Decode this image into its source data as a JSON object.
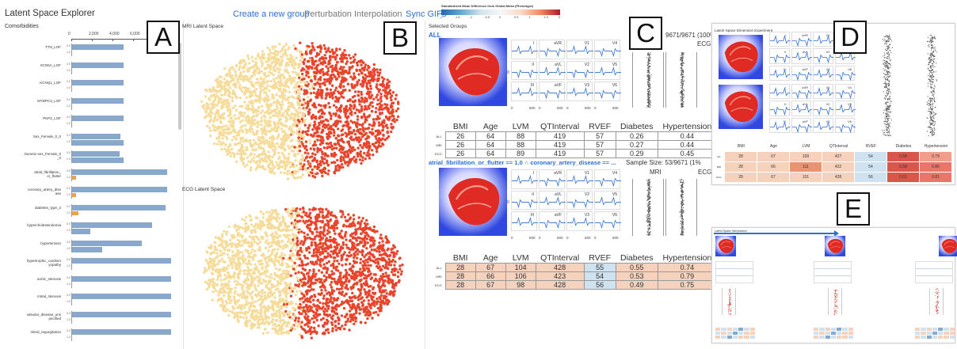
{
  "app": {
    "title": "Latent Space Explorer"
  },
  "nav": {
    "create_group": "Create a new group",
    "perturbation": "Perturbation",
    "interpolation": "Interpolation",
    "sync_gifs": "Sync GIFs"
  },
  "legend": {
    "title": "Standardized Mean Difference from Global Mean (Phenotype)",
    "ticks": [
      "-2",
      "-1.5",
      "-1",
      "-0.5",
      "0",
      "0.5",
      "1",
      "1.5",
      "2"
    ]
  },
  "panel_letters": {
    "a": "A",
    "b": "B",
    "c": "C",
    "d": "D",
    "e": "E"
  },
  "comorbidities": {
    "title": "Comorbidities",
    "axis_ticks": [
      "0",
      "2,000",
      "4,000",
      "6,000"
    ],
    "row_labels": [
      "0.0",
      "1.0"
    ],
    "items": [
      {
        "label": "TTN_LOF",
        "v0": 5000,
        "v1": 0
      },
      {
        "label": "SCN5A_LOF",
        "v0": 5000,
        "v1": 0
      },
      {
        "label": "KCNQ1_LOF",
        "v0": 5000,
        "v1": 0
      },
      {
        "label": "MYBPC3_LOF",
        "v0": 5000,
        "v1": 0
      },
      {
        "label": "PKP2_LOF",
        "v0": 5000,
        "v1": 0
      },
      {
        "label": "Sex_Female_0_0",
        "v0": 4700,
        "v1": 5000
      },
      {
        "label": "Genetic-sex_Female_0\n_0",
        "v0": 4600,
        "v1": 5000
      },
      {
        "label": "atrial_fibrillation_\nor_flutter",
        "v0": 9200,
        "v1": 400
      },
      {
        "label": "coronary_artery_dise\nase",
        "v0": 9200,
        "v1": 400
      },
      {
        "label": "diabetes_type_2",
        "v0": 9100,
        "v1": 600
      },
      {
        "label": "hypercholesterolemia",
        "v0": 7800,
        "v1": 1800
      },
      {
        "label": "hypertension",
        "v0": 6800,
        "v1": 2900
      },
      {
        "label": "hypertrophic_cardiom\nyopathy",
        "v0": 9600,
        "v1": 0
      },
      {
        "label": "aortic_stenosis",
        "v0": 9600,
        "v1": 0
      },
      {
        "label": "mitral_stenosis",
        "v0": 9600,
        "v1": 0
      },
      {
        "label": "valvular_disease_uns\npecified",
        "v0": 9600,
        "v1": 0
      },
      {
        "label": "mitral_regurgitation",
        "v0": 9600,
        "v1": 0
      }
    ]
  },
  "mri_space": {
    "title": "MRI Latent Space"
  },
  "ecg_space": {
    "title": "ECG Latent Space"
  },
  "selected": {
    "title": "Selected Groups",
    "group1": {
      "name": "ALL",
      "count": "9671/9671 (100%",
      "modality": "ECG"
    },
    "group2": {
      "name": "atrial_fibrillation_or_flutter == 1.0 ∩ coronary_artery_disease == ...",
      "sample": "Sample Size: 53/9671 (1%",
      "mri": "MRI",
      "ecg": "ECG"
    },
    "leads": [
      [
        "I",
        "aVR",
        "V1",
        "V4"
      ],
      [
        "II",
        "aVL",
        "V2",
        "V5"
      ],
      [
        "III",
        "aVF",
        "V3",
        "V6"
      ]
    ],
    "ekg_axis": [
      "0",
      "600",
      "0",
      "600",
      "0",
      "600",
      "0",
      "600"
    ],
    "zero": "0",
    "headers": [
      "BMI",
      "Age",
      "LVM",
      "QTInterval",
      "RVEF",
      "Diabetes",
      "Hypertension"
    ],
    "table1": [
      [
        "ALL",
        "26",
        "64",
        "88",
        "419",
        "57",
        "0.26",
        "0.44"
      ],
      [
        "MRI",
        "26",
        "64",
        "88",
        "419",
        "57",
        "0.27",
        "0.44"
      ],
      [
        "ECG",
        "26",
        "64",
        "89",
        "419",
        "57",
        "0.29",
        "0.45"
      ]
    ],
    "table2": [
      [
        "ALL",
        "28",
        "67",
        "104",
        "428",
        "55",
        "0.55",
        "0.74"
      ],
      [
        "MRI",
        "28",
        "66",
        "106",
        "423",
        "54",
        "0.53",
        "0.79"
      ],
      [
        "ECG",
        "28",
        "67",
        "98",
        "428",
        "56",
        "0.49",
        "0.75"
      ]
    ]
  },
  "panel_d": {
    "title": "Latent Space Dimension Experiment",
    "headers": [
      "BMI",
      "Age",
      "LVM",
      "QTInterval",
      "RVEF",
      "Diabetes",
      "Hypertension"
    ],
    "rows": [
      [
        "ALL",
        "28",
        "67",
        "109",
        "427",
        "54",
        "0.58",
        "0.79"
      ],
      [
        "MRI",
        "28",
        "66",
        "111",
        "422",
        "54",
        "0.58",
        "0.86"
      ],
      [
        "ECG",
        "28",
        "67",
        "101",
        "428",
        "56",
        "0.61",
        "0.81"
      ]
    ]
  },
  "panel_e": {
    "title": "Latent Space Interpolation"
  },
  "colors": {
    "accent": "#2f6fd1",
    "bar_blue": "#88a9cc",
    "bar_orange": "#f0a24b",
    "dot_red": "#e8452c",
    "dot_cream": "#f6dc9a",
    "cell_warm": "#f6d2bd",
    "cell_cool": "#cfe2ef",
    "cell_hot": "#d8574a"
  }
}
